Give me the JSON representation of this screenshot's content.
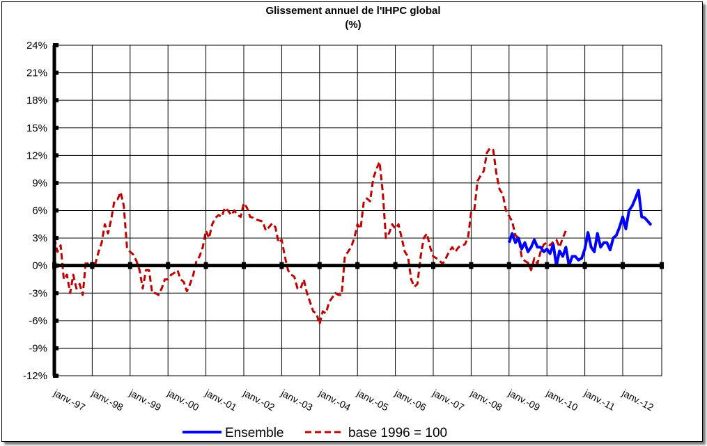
{
  "chart_data": {
    "type": "line",
    "title": "Glissement annuel de l'IHPC global",
    "subtitle": "(%)",
    "xlabel": "",
    "ylabel": "",
    "ylim": [
      -12,
      24
    ],
    "ystep": 3,
    "y_tick_labels": [
      "-12%",
      "-9%",
      "-6%",
      "-3%",
      "0%",
      "3%",
      "6%",
      "9%",
      "12%",
      "15%",
      "18%",
      "21%",
      "24%"
    ],
    "x_tick_labels": [
      "janv.-97",
      "janv.-98",
      "janv.-99",
      "janv.-00",
      "janv.-01",
      "janv.-02",
      "janv.-03",
      "janv.-04",
      "janv.-05",
      "janv.-06",
      "janv.-07",
      "janv.-08",
      "janv.-09",
      "janv.-10",
      "janv.-11",
      "janv.-12"
    ],
    "x_start": "janv.-97",
    "x_unit": "month",
    "grid": true,
    "legend_position": "bottom",
    "series": [
      {
        "name": "Ensemble",
        "color": "#0000ff",
        "style": "solid",
        "start_month_index": 144,
        "values": [
          2.5,
          3.5,
          2.5,
          3.0,
          1.8,
          2.5,
          1.5,
          2.0,
          2.8,
          2.0,
          2.0,
          1.5,
          1.8,
          1.3,
          2.3,
          0.0,
          1.6,
          1.0,
          2.0,
          0.0,
          1.0,
          1.0,
          0.6,
          0.8,
          1.8,
          3.6,
          2.0,
          1.5,
          3.5,
          2.0,
          2.5,
          2.5,
          1.7,
          3.0,
          3.3,
          4.2,
          5.3,
          4.0,
          6.0,
          6.5,
          7.3,
          8.2,
          5.3,
          5.2,
          4.8,
          4.4
        ]
      },
      {
        "name": "base 1996 = 100",
        "color": "#c00000",
        "style": "dashed",
        "start_month_index": 0,
        "values": [
          3.0,
          1.5,
          2.2,
          -1.5,
          -1.0,
          -3.0,
          -1.0,
          -2.5,
          -2.0,
          -3.2,
          0.5,
          0.0,
          0.3,
          0.2,
          1.5,
          2.5,
          4.5,
          3.5,
          5.0,
          7.0,
          7.2,
          8.0,
          6.5,
          2.0,
          1.5,
          1.2,
          0.5,
          -0.5,
          -2.5,
          -0.5,
          -0.5,
          -3.0,
          -3.0,
          -3.2,
          -2.5,
          -1.5,
          -1.5,
          -1.0,
          -0.8,
          -0.5,
          -1.5,
          -1.8,
          -2.8,
          -2.0,
          -1.0,
          0.5,
          1.0,
          2.0,
          3.8,
          3.0,
          4.5,
          5.2,
          5.5,
          5.3,
          6.3,
          6.0,
          5.5,
          6.0,
          5.5,
          5.3,
          6.8,
          6.3,
          5.3,
          5.2,
          5.0,
          4.9,
          4.8,
          3.8,
          4.2,
          4.6,
          4.2,
          2.5,
          2.8,
          1.0,
          -0.5,
          -1.0,
          -1.2,
          -2.5,
          -2.5,
          -1.5,
          -3.0,
          -4.0,
          -5.0,
          -5.2,
          -6.4,
          -5.0,
          -5.2,
          -4.0,
          -3.5,
          -3.0,
          -3.2,
          -3.2,
          1.0,
          1.5,
          2.0,
          3.0,
          4.5,
          4.0,
          7.0,
          7.3,
          7.0,
          9.5,
          10.5,
          11.3,
          8.0,
          3.0,
          3.5,
          4.5,
          4.0,
          4.5,
          3.0,
          1.5,
          1.0,
          -1.5,
          -2.3,
          -2.0,
          1.0,
          3.0,
          3.5,
          2.0,
          1.0,
          0.8,
          0.5,
          0.2,
          0.8,
          1.5,
          2.0,
          1.5,
          2.0,
          2.2,
          2.3,
          3.0,
          5.8,
          6.0,
          9.2,
          9.8,
          10.3,
          12.3,
          12.8,
          12.6,
          10.0,
          8.3,
          7.8,
          6.0,
          5.4,
          4.8,
          3.3,
          3.0,
          1.0,
          0.5,
          0.3,
          -0.5,
          0.8,
          0.2,
          1.5,
          2.3,
          2.5,
          2.2,
          2.6,
          2.8,
          2.0,
          3.0,
          3.8
        ]
      }
    ]
  }
}
